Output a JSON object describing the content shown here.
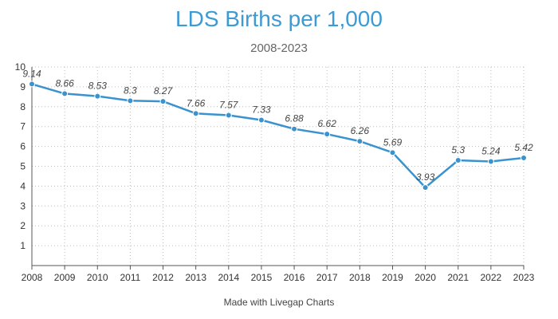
{
  "chart_data": {
    "type": "line",
    "title": "LDS Births per 1,000",
    "subtitle": "2008-2023",
    "xlabel": "",
    "ylabel": "",
    "categories": [
      "2008",
      "2009",
      "2010",
      "2011",
      "2012",
      "2013",
      "2014",
      "2015",
      "2016",
      "2017",
      "2018",
      "2019",
      "2020",
      "2021",
      "2022",
      "2023"
    ],
    "series": [
      {
        "values": [
          9.14,
          8.66,
          8.53,
          8.3,
          8.27,
          7.66,
          7.57,
          7.33,
          6.88,
          6.62,
          6.26,
          5.69,
          3.93,
          5.3,
          5.24,
          5.42
        ]
      }
    ],
    "data_labels": [
      "9.14",
      "8.66",
      "8.53",
      "8.3",
      "8.27",
      "7.66",
      "7.57",
      "7.33",
      "6.88",
      "6.62",
      "6.26",
      "5.69",
      "3.93",
      "5.3",
      "5.24",
      "5.42"
    ],
    "y_ticks": [
      "1",
      "2",
      "3",
      "4",
      "5",
      "6",
      "7",
      "8",
      "9",
      "10"
    ],
    "ylim": [
      0,
      10
    ],
    "grid": true,
    "legend": "none",
    "colors": {
      "line": "#3a92cf",
      "title": "#3d9bd4",
      "grid": "#bbbbbb"
    }
  },
  "footer": "Made with Livegap Charts"
}
